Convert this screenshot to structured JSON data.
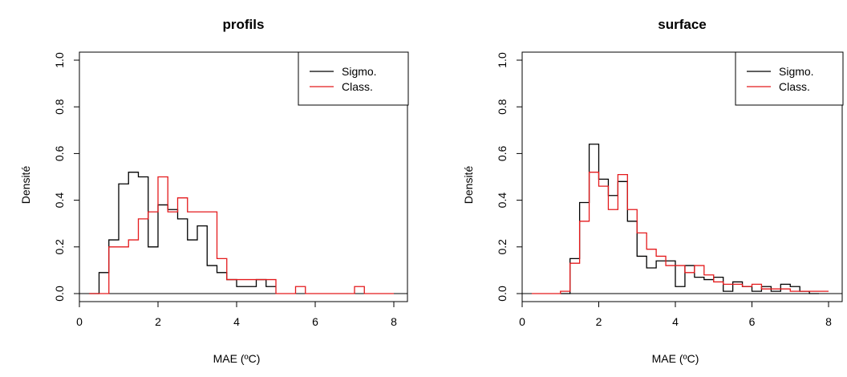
{
  "chart_data": [
    {
      "type": "step-histogram",
      "title": "profils",
      "xlabel": "MAE (ºC)",
      "ylabel": "Densité",
      "xlim": [
        0,
        8
      ],
      "ylim": [
        0,
        1.0
      ],
      "xticks": [
        "0",
        "2",
        "4",
        "6",
        "8"
      ],
      "yticks": [
        "0.0",
        "0.2",
        "0.4",
        "0.6",
        "0.8",
        "1.0"
      ],
      "legend": {
        "position": "top-right",
        "entries": [
          {
            "name": "Sigmo.",
            "color": "#000000"
          },
          {
            "name": "Class.",
            "color": "#e41a1c"
          }
        ]
      },
      "series": [
        {
          "name": "Sigmo.",
          "color": "#000000",
          "x": [
            0.25,
            0.5,
            0.75,
            1.0,
            1.25,
            1.5,
            1.75,
            2.0,
            2.25,
            2.5,
            2.75,
            3.0,
            3.25,
            3.5,
            3.75,
            4.0,
            4.25,
            4.5,
            4.75,
            5.0
          ],
          "y": [
            0,
            0.09,
            0.23,
            0.47,
            0.52,
            0.5,
            0.2,
            0.38,
            0.36,
            0.32,
            0.23,
            0.29,
            0.12,
            0.09,
            0.06,
            0.03,
            0.03,
            0.06,
            0.03
          ]
        },
        {
          "name": "Class.",
          "color": "#e41a1c",
          "x": [
            0.25,
            0.5,
            0.75,
            1.0,
            1.25,
            1.5,
            1.75,
            2.0,
            2.25,
            2.5,
            2.75,
            3.0,
            3.25,
            3.5,
            3.75,
            4.0,
            4.25,
            4.5,
            4.75,
            5.0,
            5.25,
            5.5,
            5.75,
            6.0,
            6.25,
            6.5,
            6.75,
            7.0,
            7.25,
            7.5,
            7.75,
            8.0
          ],
          "y": [
            0,
            0,
            0.2,
            0.2,
            0.23,
            0.32,
            0.35,
            0.5,
            0.35,
            0.41,
            0.35,
            0.35,
            0.35,
            0.15,
            0.06,
            0.06,
            0.06,
            0.06,
            0.06,
            0,
            0,
            0.03,
            0,
            0,
            0,
            0,
            0,
            0.03,
            0,
            0,
            0
          ]
        }
      ]
    },
    {
      "type": "step-histogram",
      "title": "surface",
      "xlabel": "MAE (ºC)",
      "ylabel": "Densité",
      "xlim": [
        0,
        8
      ],
      "ylim": [
        0,
        1.0
      ],
      "xticks": [
        "0",
        "2",
        "4",
        "6",
        "8"
      ],
      "yticks": [
        "0.0",
        "0.2",
        "0.4",
        "0.6",
        "0.8",
        "1.0"
      ],
      "legend": {
        "position": "top-right",
        "entries": [
          {
            "name": "Sigmo.",
            "color": "#000000"
          },
          {
            "name": "Class.",
            "color": "#e41a1c"
          }
        ]
      },
      "series": [
        {
          "name": "Sigmo.",
          "color": "#000000",
          "x": [
            1.0,
            1.25,
            1.5,
            1.75,
            2.0,
            2.25,
            2.5,
            2.75,
            3.0,
            3.25,
            3.5,
            3.75,
            4.0,
            4.25,
            4.5,
            4.75,
            5.0,
            5.25,
            5.5,
            5.75,
            6.0,
            6.25,
            6.5,
            6.75,
            7.0,
            7.25,
            7.5,
            7.75
          ],
          "y": [
            0,
            0.15,
            0.39,
            0.64,
            0.49,
            0.42,
            0.48,
            0.31,
            0.16,
            0.11,
            0.14,
            0.14,
            0.03,
            0.12,
            0.07,
            0.06,
            0.07,
            0.01,
            0.05,
            0.03,
            0.01,
            0.03,
            0.01,
            0.04,
            0.03,
            0.01,
            0
          ]
        },
        {
          "name": "Class.",
          "color": "#e41a1c",
          "x": [
            0.25,
            0.5,
            0.75,
            1.0,
            1.25,
            1.5,
            1.75,
            2.0,
            2.25,
            2.5,
            2.75,
            3.0,
            3.25,
            3.5,
            3.75,
            4.0,
            4.25,
            4.5,
            4.75,
            5.0,
            5.25,
            5.5,
            5.75,
            6.0,
            6.25,
            6.5,
            6.75,
            7.0,
            7.25,
            7.5,
            7.75,
            8.0
          ],
          "y": [
            0,
            0,
            0,
            0.01,
            0.13,
            0.31,
            0.52,
            0.46,
            0.36,
            0.51,
            0.36,
            0.26,
            0.19,
            0.16,
            0.12,
            0.12,
            0.09,
            0.12,
            0.08,
            0.05,
            0.04,
            0.04,
            0.03,
            0.04,
            0.02,
            0.02,
            0.02,
            0.01,
            0.01,
            0.01,
            0.01
          ]
        }
      ]
    }
  ]
}
